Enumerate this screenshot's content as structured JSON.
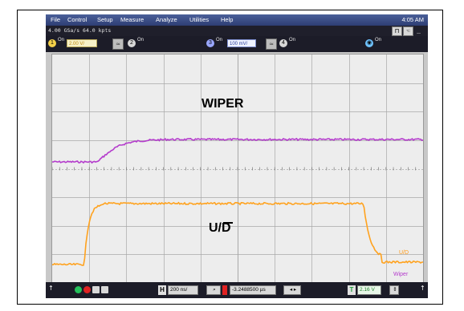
{
  "menu": {
    "items": [
      "File",
      "Control",
      "Setup",
      "Measure",
      "Analyze",
      "Utilities",
      "Help"
    ],
    "clock": "4:05 AM"
  },
  "status": {
    "acq": "4.00 GSa/s   64.0 kpts"
  },
  "channels": {
    "ch1": {
      "num": "1",
      "state": "On",
      "scale": "2.00 V/"
    },
    "ch2": {
      "num": "2",
      "state": "On"
    },
    "ch3": {
      "num": "3",
      "state": "On",
      "scale": "100 mV/"
    },
    "ch4": {
      "num": "4",
      "state": "On"
    },
    "math": {
      "state": "On"
    }
  },
  "screen": {
    "label_top": "WIPER",
    "label_bottom": "U/D",
    "edge_label_1": "U/D",
    "edge_label_2": "Wiper"
  },
  "bottom": {
    "timebase_tag": "H",
    "timebase": "200 ns/",
    "delay": "-3.2488500 µs",
    "trigger_tag": "T",
    "trigger_level": "2.16 V"
  },
  "colors": {
    "wiper_trace": "#b43ccc",
    "ud_trace": "#ffa21e",
    "grid": "#a8a8a8"
  }
}
